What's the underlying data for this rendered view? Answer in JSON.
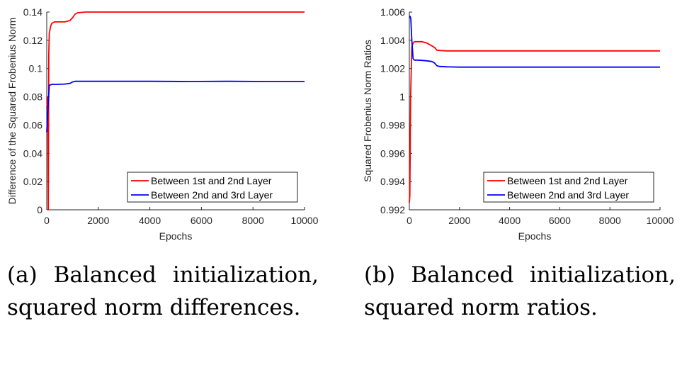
{
  "chart_data": [
    {
      "type": "line",
      "xlabel": "Epochs",
      "ylabel": "Difference of the Squared Frobenius Norm",
      "xlim": [
        0,
        10000
      ],
      "ylim": [
        0,
        0.14
      ],
      "xticks": [
        0,
        2000,
        4000,
        6000,
        8000,
        10000
      ],
      "xtick_labels": [
        "0",
        "2000",
        "4000",
        "6000",
        "8000",
        "10000"
      ],
      "yticks": [
        0,
        0.02,
        0.04,
        0.06,
        0.08,
        0.1,
        0.12,
        0.14
      ],
      "ytick_labels": [
        "0",
        "0.02",
        "0.04",
        "0.06",
        "0.08",
        "0.1",
        "0.12",
        "0.14"
      ],
      "grid": false,
      "legend_position": "bottom-right",
      "series": [
        {
          "name": "Between 1st and 2nd Layer",
          "color": "#ff0000",
          "x": [
            0,
            40,
            60,
            80,
            100,
            150,
            200,
            300,
            500,
            700,
            900,
            1000,
            1100,
            1200,
            1500,
            2000,
            4000,
            6000,
            8000,
            10000
          ],
          "y": [
            0.072,
            0.08,
            0.0,
            0.11,
            0.125,
            0.13,
            0.132,
            0.133,
            0.133,
            0.133,
            0.134,
            0.136,
            0.1385,
            0.1395,
            0.14,
            0.14,
            0.14,
            0.14,
            0.14,
            0.14
          ]
        },
        {
          "name": "Between 2nd and 3rd Layer",
          "color": "#0000ff",
          "x": [
            0,
            40,
            100,
            150,
            200,
            400,
            700,
            900,
            1000,
            1100,
            1300,
            2000,
            4000,
            5500,
            7000,
            8500,
            10000
          ],
          "y": [
            0.055,
            0.07,
            0.088,
            0.0885,
            0.0888,
            0.0888,
            0.089,
            0.0895,
            0.0905,
            0.091,
            0.091,
            0.091,
            0.091,
            0.0908,
            0.091,
            0.0908,
            0.0908
          ]
        }
      ]
    },
    {
      "type": "line",
      "xlabel": "Epochs",
      "ylabel": "Squared Frobenius Norm Ratios",
      "xlim": [
        0,
        10000
      ],
      "ylim": [
        0.992,
        1.006
      ],
      "xticks": [
        0,
        2000,
        4000,
        6000,
        8000,
        10000
      ],
      "xtick_labels": [
        "0",
        "2000",
        "4000",
        "6000",
        "8000",
        "10000"
      ],
      "yticks": [
        0.992,
        0.994,
        0.996,
        0.998,
        1.0,
        1.002,
        1.004,
        1.006
      ],
      "ytick_labels": [
        "0.992",
        "0.994",
        "0.996",
        "0.998",
        "1",
        "1.002",
        "1.004",
        "1.006"
      ],
      "grid": false,
      "legend_position": "bottom-right",
      "series": [
        {
          "name": "Between 1st and 2nd Layer",
          "color": "#ff0000",
          "x": [
            0,
            20,
            50,
            100,
            150,
            200,
            300,
            500,
            700,
            900,
            1000,
            1100,
            1200,
            1500,
            2000,
            4000,
            6000,
            8000,
            10000
          ],
          "y": [
            0.9925,
            0.993,
            1.0,
            1.0035,
            1.0038,
            1.0039,
            1.0039,
            1.0039,
            1.0038,
            1.0036,
            1.0035,
            1.0033,
            1.00328,
            1.00325,
            1.00325,
            1.00325,
            1.00325,
            1.00325,
            1.00325
          ]
        },
        {
          "name": "Between 2nd and 3rd Layer",
          "color": "#0000ff",
          "x": [
            0,
            30,
            60,
            100,
            150,
            200,
            300,
            500,
            700,
            900,
            1000,
            1100,
            1200,
            1500,
            2000,
            4000,
            6000,
            8000,
            10000
          ],
          "y": [
            1.0056,
            1.0057,
            1.0055,
            1.004,
            1.0027,
            1.0026,
            1.0026,
            1.00258,
            1.00255,
            1.0025,
            1.0024,
            1.0022,
            1.00215,
            1.00212,
            1.0021,
            1.0021,
            1.0021,
            1.0021,
            1.0021
          ]
        }
      ]
    }
  ],
  "captions": [
    "(a) Balanced initialization, squared norm differences.",
    "(b) Balanced initialization, squared norm ratios."
  ]
}
